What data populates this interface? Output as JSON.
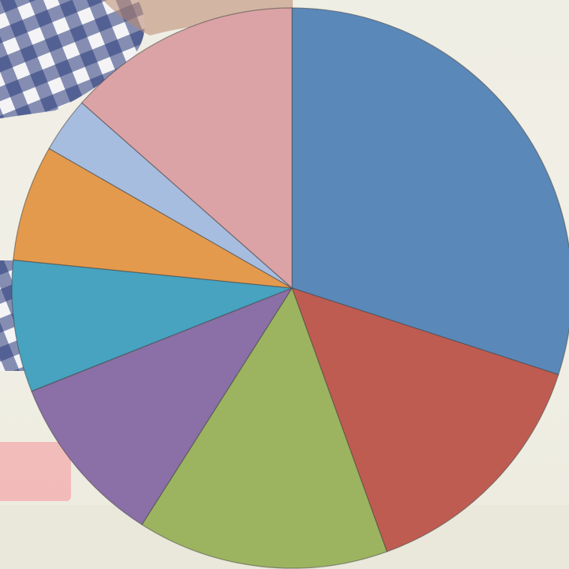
{
  "chart_data": {
    "type": "pie",
    "start_angle_deg": 0,
    "direction": "clockwise",
    "slices": [
      {
        "value": 30.0,
        "color": "#5a88b8"
      },
      {
        "value": 14.5,
        "color": "#bf5c52"
      },
      {
        "value": 14.5,
        "color": "#9cb45f"
      },
      {
        "value": 10.0,
        "color": "#8a70a6"
      },
      {
        "value": 7.6,
        "color": "#47a3c0"
      },
      {
        "value": 6.7,
        "color": "#e49a4d"
      },
      {
        "value": 3.2,
        "color": "#a7bddf"
      },
      {
        "value": 13.5,
        "color": "#dba3a6"
      }
    ]
  },
  "background": {
    "description_icon": "gingham-fabric-photo",
    "accent_pink": "#f2b6b6"
  }
}
